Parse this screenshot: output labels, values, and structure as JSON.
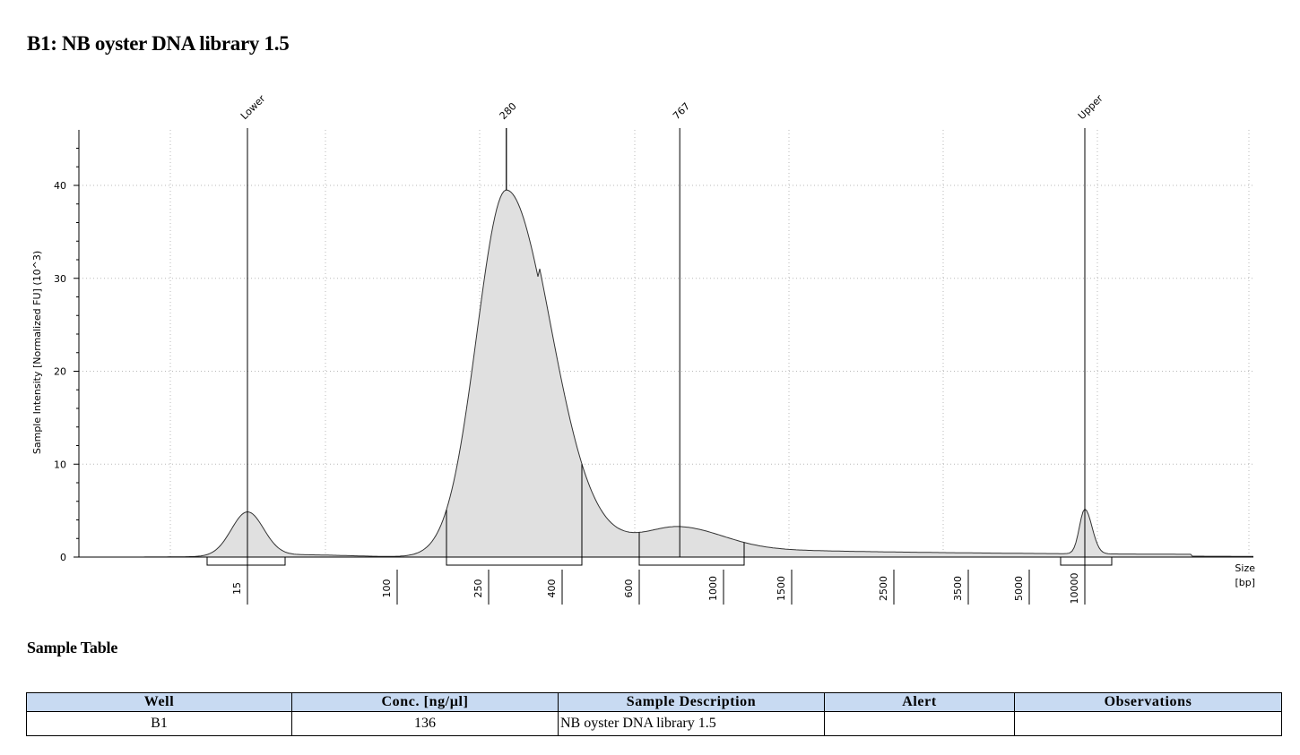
{
  "title": "B1: NB oyster DNA library 1.5",
  "chart_data": {
    "type": "area",
    "ylabel": "Sample Intensity [Normalized FU] (10^3)",
    "xlabel": "Size\n[bp]",
    "xlabel_lines": [
      "Size",
      "[bp]"
    ],
    "x_scale": "electropherogram (non-linear bp)",
    "ylim": [
      0,
      46
    ],
    "y_ticks": [
      0,
      10,
      20,
      30,
      40
    ],
    "x_ticks": [
      "15",
      "100",
      "250",
      "400",
      "600",
      "1000",
      "1500",
      "2500",
      "3500",
      "5000",
      "10000"
    ],
    "peaks": [
      {
        "label": "Lower",
        "size_bp": 15,
        "height": 4.7
      },
      {
        "label": "280",
        "size_bp": 280,
        "height": 39.5
      },
      {
        "label": "767",
        "size_bp": 767,
        "height": 3.8
      },
      {
        "label": "Upper",
        "size_bp": 10000,
        "height": 5.1
      }
    ],
    "regions": [
      {
        "from_bp": "<15",
        "to_bp": ">15"
      },
      {
        "from_bp": 200,
        "to_bp": 500
      },
      {
        "from_bp": 600,
        "to_bp": 1200
      },
      {
        "from_bp": 7000,
        "to_bp": 15000
      }
    ],
    "grid": "dotted vertical",
    "fill_color": "#e0e0e0"
  },
  "sample_table": {
    "title": "Sample Table",
    "headers": [
      "Well",
      "Conc. [ng/µl]",
      "Sample Description",
      "Alert",
      "Observations"
    ],
    "rows": [
      {
        "well": "B1",
        "conc": "136",
        "description": "NB oyster DNA library 1.5",
        "alert": "",
        "observations": ""
      }
    ],
    "header_color": "#c8daf2"
  }
}
